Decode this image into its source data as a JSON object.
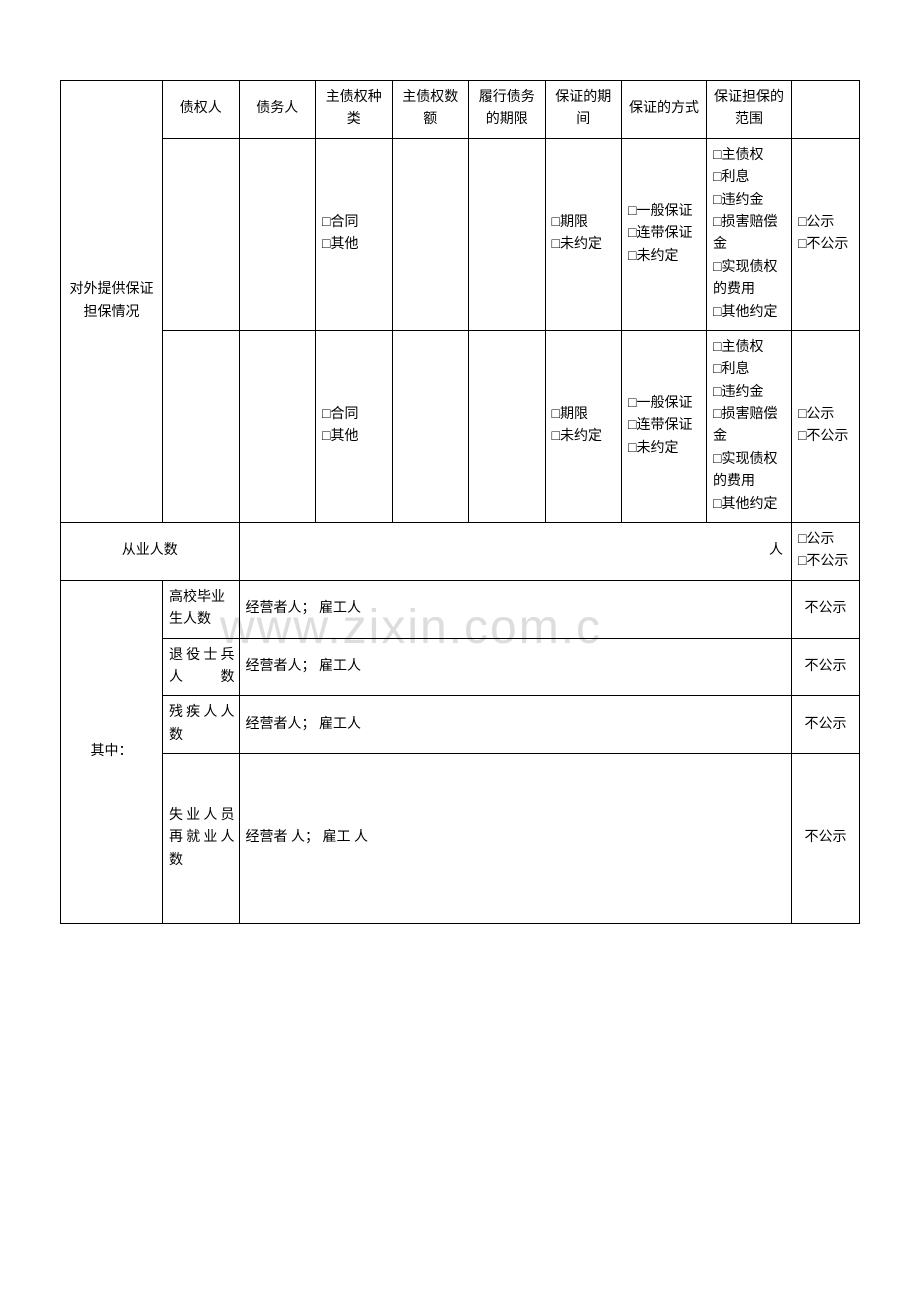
{
  "watermark": "www.zixin.com.c",
  "guarantee": {
    "row_label": "对外提供保证担保情况",
    "headers": {
      "creditor": "债权人",
      "debtor": "债务人",
      "claim_type": "主债权种类",
      "claim_amount": "主债权数额",
      "performance_period": "履行债务的期限",
      "guarantee_period": "保证的期间",
      "guarantee_method": "保证的方式",
      "guarantee_scope": "保证担保的范围"
    },
    "row1": {
      "claim_type": "□合同\n□其他",
      "guarantee_period": "□期限\n□未约定",
      "guarantee_method": "□一般保证\n□连带保证\n□未约定",
      "guarantee_scope": "□主债权\n□利息\n□违约金\n□损害赔偿金\n□实现债权的费用\n□其他约定",
      "disclosure": "□公示\n□不公示"
    },
    "row2": {
      "claim_type": "□合同\n□其他",
      "guarantee_period": "□期限\n□未约定",
      "guarantee_method": "□一般保证\n□连带保证\n□未约定",
      "guarantee_scope": "□主债权\n□利息\n□违约金\n□损害赔偿金\n□实现债权的费用\n□其他约定",
      "disclosure": "□公示\n□不公示"
    }
  },
  "employees": {
    "label": "从业人数",
    "unit": "人",
    "disclosure": "□公示\n□不公示"
  },
  "breakdown": {
    "label": "其中：",
    "rows": {
      "graduates": {
        "label": "高校毕业生人数",
        "value": "经营者人；  雇工人",
        "disclosure": "不公示"
      },
      "veterans": {
        "label": "退役士兵人数",
        "value": "经营者人；  雇工人",
        "disclosure": "不公示"
      },
      "disabled": {
        "label": "残疾人人数",
        "value": "经营者人；  雇工人",
        "disclosure": "不公示"
      },
      "unemployed": {
        "label": "失业人员再就业人数",
        "value": "经营者    人；    雇工    人",
        "disclosure": "不公示"
      }
    }
  }
}
